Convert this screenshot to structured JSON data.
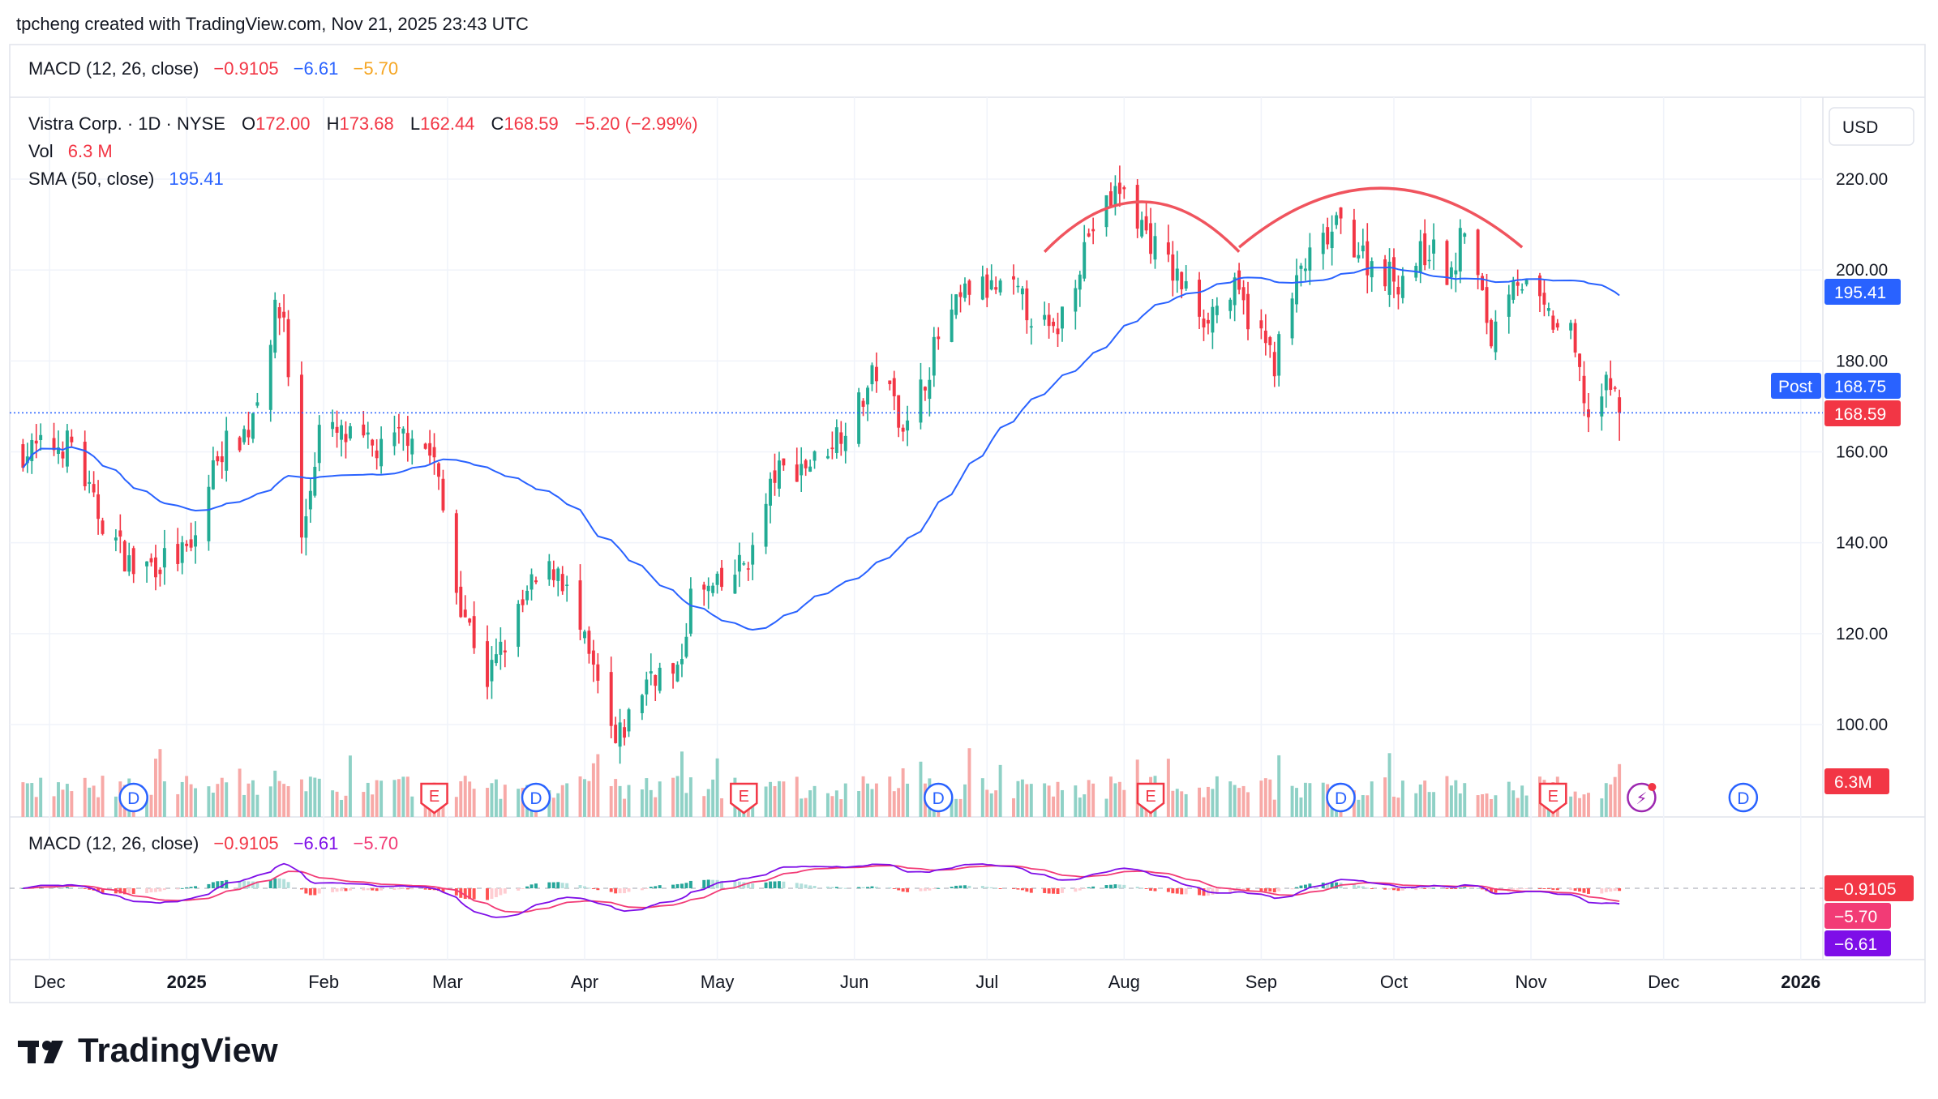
{
  "header": {
    "credit": "tpcheng created with TradingView.com, Nov 21, 2025 23:43 UTC",
    "macd_top_label": "MACD (12, 26, close)",
    "macd_top_hist": "−0.9105",
    "macd_top_macd": "−6.61",
    "macd_top_signal": "−5.70"
  },
  "legend": {
    "symbol": "Vistra Corp. · 1D · NYSE",
    "o_label": "O",
    "o_value": "172.00",
    "h_label": "H",
    "h_value": "173.68",
    "l_label": "L",
    "l_value": "162.44",
    "c_label": "C",
    "c_value": "168.59",
    "change": "−5.20 (−2.99%)",
    "vol_label": "Vol",
    "vol_value": "6.3 M",
    "sma_label": "SMA (50, close)",
    "sma_value": "195.41"
  },
  "price_axis": {
    "currency_button": "USD",
    "ticks": [
      "220.00",
      "200.00",
      "180.00",
      "160.00",
      "140.00",
      "120.00",
      "100.00"
    ],
    "sma_tag": "195.41",
    "post_label": "Post",
    "post_value": "168.75",
    "last_value": "168.59",
    "volume_tag": "6.3M"
  },
  "macd_pane": {
    "label": "MACD (12, 26, close)",
    "hist": "−0.9105",
    "macd": "−6.61",
    "signal": "−5.70",
    "tag_hist": "−0.9105",
    "tag_signal": "−5.70",
    "tag_macd": "−6.61"
  },
  "time_axis": {
    "labels": [
      {
        "text": "Dec",
        "bold": false
      },
      {
        "text": "2025",
        "bold": true
      },
      {
        "text": "Feb",
        "bold": false
      },
      {
        "text": "Mar",
        "bold": false
      },
      {
        "text": "Apr",
        "bold": false
      },
      {
        "text": "May",
        "bold": false
      },
      {
        "text": "Jun",
        "bold": false
      },
      {
        "text": "Jul",
        "bold": false
      },
      {
        "text": "Aug",
        "bold": false
      },
      {
        "text": "Sep",
        "bold": false
      },
      {
        "text": "Oct",
        "bold": false
      },
      {
        "text": "Nov",
        "bold": false
      },
      {
        "text": "Dec",
        "bold": false
      },
      {
        "text": "2026",
        "bold": true
      }
    ]
  },
  "markers": [
    {
      "type": "dividend",
      "letter": "D",
      "date": "2024-12-20"
    },
    {
      "type": "earnings",
      "letter": "E",
      "date": "2025-02-26"
    },
    {
      "type": "dividend",
      "letter": "D",
      "date": "2025-03-21"
    },
    {
      "type": "earnings",
      "letter": "E",
      "date": "2025-05-07"
    },
    {
      "type": "dividend",
      "letter": "D",
      "date": "2025-06-20"
    },
    {
      "type": "earnings",
      "letter": "E",
      "date": "2025-08-07"
    },
    {
      "type": "dividend",
      "letter": "D",
      "date": "2025-09-19"
    },
    {
      "type": "earnings",
      "letter": "E",
      "date": "2025-11-06"
    },
    {
      "type": "flash",
      "letter": "⚡",
      "date": "2025-11-26"
    },
    {
      "type": "dividend",
      "letter": "D",
      "date": "2025-12-19"
    }
  ],
  "branding": {
    "logo_mark": "TV",
    "logo_text": "TradingView"
  },
  "colors": {
    "up": "#22ab94",
    "down": "#f23645",
    "vol_up": "#8fd1c6",
    "vol_down": "#f7a9a7",
    "sma": "#2962ff",
    "macd_line": "#7e0ee8",
    "signal_line": "#f23b76",
    "arc": "#f0545e",
    "hist_up_strong": "#26a69a",
    "hist_up_weak": "#b2dfdb",
    "hist_down_strong": "#ff5252",
    "hist_down_weak": "#ffcdd2"
  },
  "chart_data": {
    "type": "candlestick",
    "ylim": [
      88,
      232
    ],
    "xlim": [
      "2024-11-22",
      "2026-01-06"
    ],
    "last_candle": {
      "date": "2025-11-21",
      "open": 172.0,
      "high": 173.68,
      "low": 162.44,
      "close": 168.59
    },
    "post_market": 168.75,
    "sma50_last": 195.41,
    "close_anchors": [
      [
        "2024-11-25",
        160
      ],
      [
        "2024-12-06",
        162
      ],
      [
        "2024-12-11",
        148
      ],
      [
        "2024-12-20",
        134
      ],
      [
        "2025-01-02",
        138
      ],
      [
        "2025-01-08",
        160
      ],
      [
        "2025-01-15",
        165
      ],
      [
        "2025-01-21",
        190
      ],
      [
        "2025-01-23",
        190
      ],
      [
        "2025-01-27",
        140
      ],
      [
        "2025-01-31",
        165
      ],
      [
        "2025-02-14",
        160
      ],
      [
        "2025-02-21",
        165
      ],
      [
        "2025-02-26",
        158
      ],
      [
        "2025-03-03",
        130
      ],
      [
        "2025-03-10",
        110
      ],
      [
        "2025-03-20",
        130
      ],
      [
        "2025-03-26",
        135
      ],
      [
        "2025-04-04",
        108
      ],
      [
        "2025-04-08",
        95
      ],
      [
        "2025-04-16",
        112
      ],
      [
        "2025-04-22",
        110
      ],
      [
        "2025-04-25",
        128
      ],
      [
        "2025-05-02",
        130
      ],
      [
        "2025-05-09",
        138
      ],
      [
        "2025-05-14",
        155
      ],
      [
        "2025-05-23",
        158
      ],
      [
        "2025-06-02",
        170
      ],
      [
        "2025-06-06",
        178
      ],
      [
        "2025-06-13",
        165
      ],
      [
        "2025-06-20",
        185
      ],
      [
        "2025-06-27",
        196
      ],
      [
        "2025-07-07",
        195
      ],
      [
        "2025-07-16",
        185
      ],
      [
        "2025-07-24",
        208
      ],
      [
        "2025-07-31",
        218
      ],
      [
        "2025-08-08",
        205
      ],
      [
        "2025-08-19",
        190
      ],
      [
        "2025-08-26",
        195
      ],
      [
        "2025-09-04",
        180
      ],
      [
        "2025-09-10",
        200
      ],
      [
        "2025-09-19",
        210
      ],
      [
        "2025-09-25",
        202
      ],
      [
        "2025-10-02",
        198
      ],
      [
        "2025-10-09",
        205
      ],
      [
        "2025-10-14",
        198
      ],
      [
        "2025-10-17",
        210
      ],
      [
        "2025-10-23",
        185
      ],
      [
        "2025-10-28",
        200
      ],
      [
        "2025-11-04",
        190
      ],
      [
        "2025-11-10",
        185
      ],
      [
        "2025-11-14",
        168
      ],
      [
        "2025-11-19",
        175
      ],
      [
        "2025-11-21",
        168.59
      ]
    ],
    "macd_last": {
      "macd": -6.61,
      "signal": -5.7,
      "histogram": -0.9105
    },
    "annotations": [
      "arc over Aug 2025 peak",
      "arc over Sep–Oct 2025 peak"
    ]
  }
}
